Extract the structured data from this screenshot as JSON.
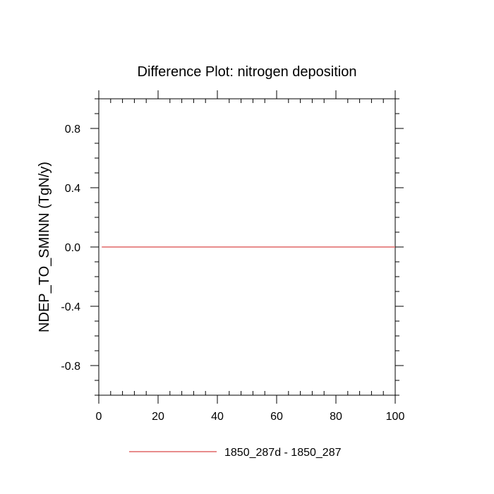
{
  "chart_data": {
    "type": "line",
    "title": "Difference Plot: nitrogen deposition",
    "xlabel": "",
    "ylabel": "NDEP_TO_SMINN  (TgN/y)",
    "xlim": [
      0,
      100
    ],
    "ylim": [
      -1,
      1
    ],
    "x_ticks": [
      0,
      20,
      40,
      60,
      80,
      100
    ],
    "x_tick_labels": [
      "0",
      "20",
      "40",
      "60",
      "80",
      "100"
    ],
    "y_ticks": [
      -0.8,
      -0.4,
      0.0,
      0.4,
      0.8
    ],
    "y_tick_labels": [
      "-0.8",
      "-0.4",
      "0.0",
      "0.4",
      "0.8"
    ],
    "grid": false,
    "legend_position": "bottom",
    "series": [
      {
        "name": "1850_287d - 1850_287",
        "color": "#e06666",
        "x": [
          1,
          100
        ],
        "y": [
          0,
          0
        ]
      }
    ]
  }
}
